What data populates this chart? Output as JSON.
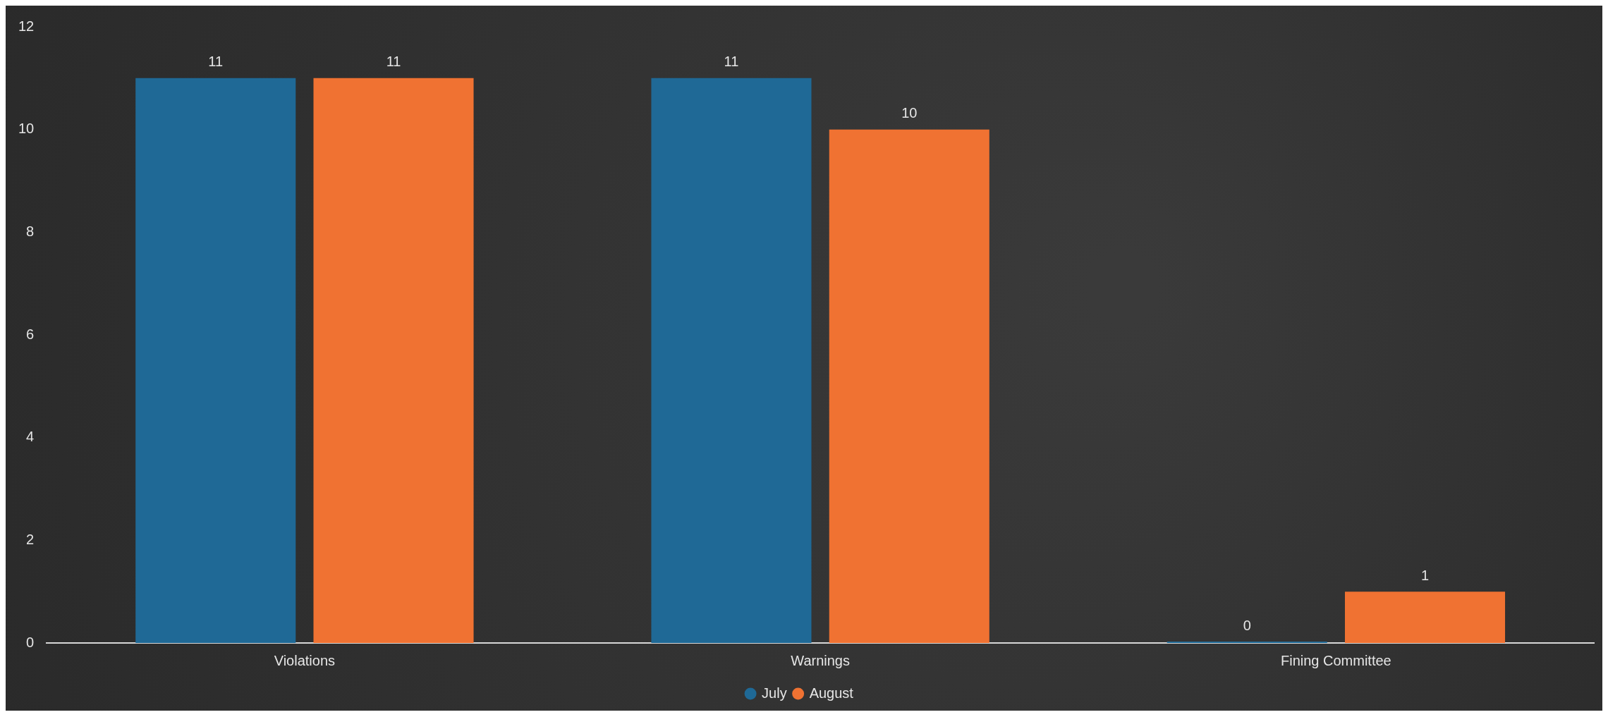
{
  "chart_data": {
    "type": "bar",
    "categories": [
      "Violations",
      "Warnings",
      "Fining Committee"
    ],
    "series": [
      {
        "name": "July",
        "color": "#1f6996",
        "values": [
          11,
          11,
          0
        ]
      },
      {
        "name": "August",
        "color": "#f07232",
        "values": [
          11,
          10,
          1
        ]
      }
    ],
    "ylim": [
      0,
      12
    ],
    "yticks": [
      0,
      2,
      4,
      6,
      8,
      10,
      12
    ],
    "grid": false,
    "legend": "bottom",
    "data_labels": true
  }
}
